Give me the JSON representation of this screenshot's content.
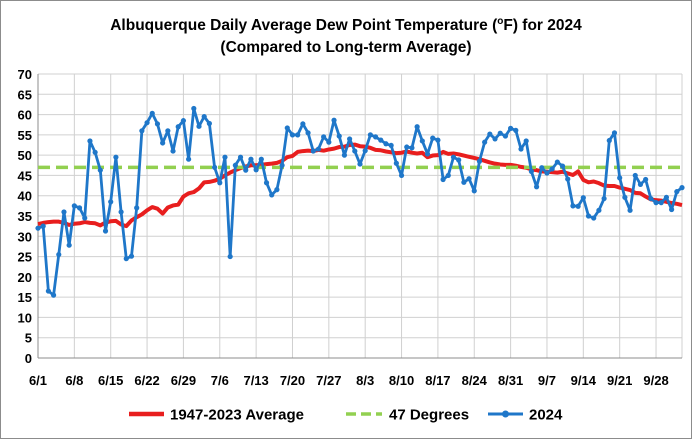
{
  "chart_data": {
    "type": "line",
    "title_main": "Albuquerque Daily Average Dew Point Temperature (",
    "title_sup": "o",
    "title_end": "F) for 2024",
    "subtitle": "(Compared to Long-term Average)",
    "ylim": [
      0,
      70
    ],
    "y_ticks": [
      "0",
      "5",
      "10",
      "15",
      "20",
      "25",
      "30",
      "35",
      "40",
      "45",
      "50",
      "55",
      "60",
      "65",
      "70"
    ],
    "x_ticks": [
      "6/1",
      "6/8",
      "6/15",
      "6/22",
      "6/29",
      "7/6",
      "7/13",
      "7/20",
      "7/27",
      "8/3",
      "8/10",
      "8/17",
      "8/24",
      "8/31",
      "9/7",
      "9/14",
      "9/21",
      "9/28"
    ],
    "grid": true,
    "legend_position": "bottom",
    "series": [
      {
        "name": "1947-2023 Average",
        "color": "#e81e1e",
        "values": [
          33,
          33.3,
          33.5,
          33.6,
          33.6,
          33.3,
          32.8,
          33.1,
          33.2,
          33.5,
          33.3,
          33.2,
          32.7,
          33.4,
          33.7,
          33.8,
          32.9,
          32.5,
          33.9,
          34.7,
          35.4,
          36.4,
          37.2,
          36.8,
          35.6,
          37.1,
          37.6,
          37.8,
          39.8,
          40.6,
          40.9,
          41.8,
          43.3,
          43.4,
          43.7,
          44.2,
          45,
          45.7,
          46.3,
          46.8,
          47.2,
          47.5,
          47.5,
          47.6,
          47.8,
          47.9,
          48.1,
          48.6,
          49.5,
          49.8,
          50.8,
          51,
          51.1,
          51,
          51.3,
          51.1,
          51.4,
          51.6,
          52,
          52.1,
          52.5,
          52.6,
          52.2,
          52.1,
          51.8,
          51.3,
          51.2,
          50.9,
          50.7,
          50.5,
          50.6,
          50.9,
          50.6,
          50.4,
          50.6,
          49.5,
          49.9,
          50,
          50.8,
          50.3,
          50.4,
          50.2,
          49.9,
          49.6,
          49.3,
          49,
          48.6,
          48.2,
          47.9,
          47.7,
          47.6,
          47.6,
          47.4,
          47.1,
          46.9,
          46.5,
          46.3,
          46,
          45.9,
          45.8,
          45.7,
          45.9,
          45.5,
          45.1,
          46,
          43.9,
          43.3,
          43.5,
          43.1,
          42.5,
          42.4,
          42.4,
          42,
          41.7,
          41.4,
          40.7,
          40.6,
          39.8,
          39.1,
          38.9,
          38.8,
          38.5,
          38.2,
          38,
          37.7
        ]
      },
      {
        "name": "47 Degrees",
        "color": "#92d050",
        "value": 47
      },
      {
        "name": "2024",
        "color": "#1f77c9",
        "values": [
          32,
          32.5,
          16.5,
          15.5,
          25.5,
          36,
          27.8,
          37.5,
          37,
          34.5,
          53.5,
          50.7,
          46.3,
          31.3,
          38.5,
          49.5,
          36,
          24.5,
          25.1,
          37,
          56,
          58,
          60.3,
          57.7,
          53,
          56,
          51,
          57,
          58.5,
          49,
          61.5,
          57.1,
          59.5,
          57.8,
          47,
          43.2,
          49.5,
          25,
          47.5,
          49.5,
          46.3,
          49,
          46.4,
          49,
          43.2,
          40.2,
          41.5,
          47.5,
          56.7,
          55,
          55,
          57.7,
          55.5,
          51,
          51.5,
          54.5,
          53.2,
          58.6,
          54.7,
          50,
          54,
          51,
          47.8,
          51.1,
          55,
          54.5,
          53.7,
          52.8,
          52.4,
          48,
          45,
          52,
          51.8,
          57,
          53.5,
          50.3,
          54.2,
          53.7,
          44,
          45,
          49.5,
          48.8,
          43.3,
          44.2,
          41.2,
          48.5,
          53.2,
          55.2,
          54,
          55.4,
          54.7,
          56.6,
          56.1,
          51.5,
          53.5,
          46,
          42.2,
          46.9,
          45.6,
          46.6,
          48.3,
          47.3,
          44.1,
          37.5,
          37.4,
          39.5,
          35,
          34.5,
          36.4,
          39.3,
          53.6,
          55.5,
          44.4,
          39.6,
          36.4,
          45,
          42.8,
          44,
          39.3,
          38.3,
          38.3,
          39.6,
          36.6,
          41,
          42
        ]
      }
    ]
  }
}
